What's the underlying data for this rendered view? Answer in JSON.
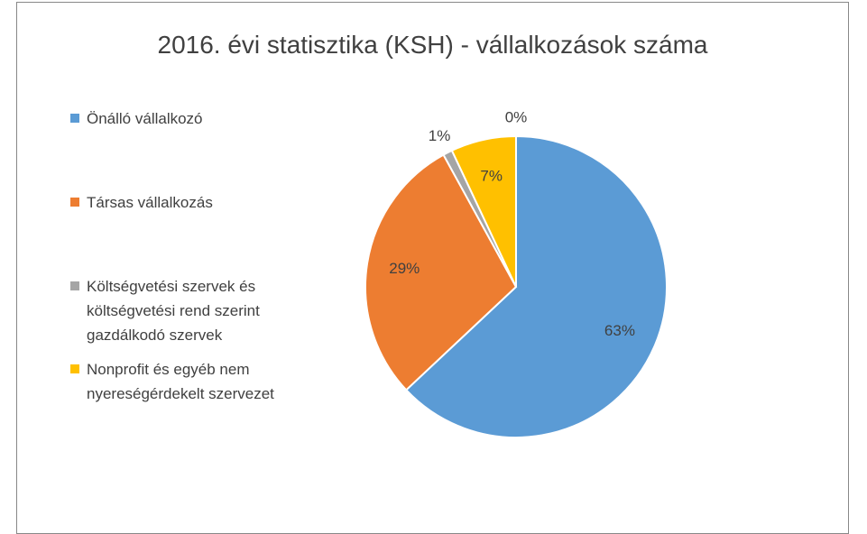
{
  "chart_data": {
    "type": "pie",
    "title": "2016. évi statisztika (KSH) - vállalkozások száma",
    "categories": [
      "Önálló vállalkozó",
      "Társas vállalkozás",
      "Költségvetési szervek és költségvetési rend szerint gazdálkodó szervek",
      "Nonprofit és egyéb nem nyereségérdekelt szervezet",
      null
    ],
    "values": [
      63,
      29,
      1,
      7,
      0
    ],
    "value_labels": [
      "63%",
      "29%",
      "1%",
      "7%",
      "0%"
    ],
    "colors": [
      "#5b9bd5",
      "#ed7d31",
      "#a5a5a5",
      "#ffc000",
      "#4472c4"
    ],
    "legend": "left"
  }
}
